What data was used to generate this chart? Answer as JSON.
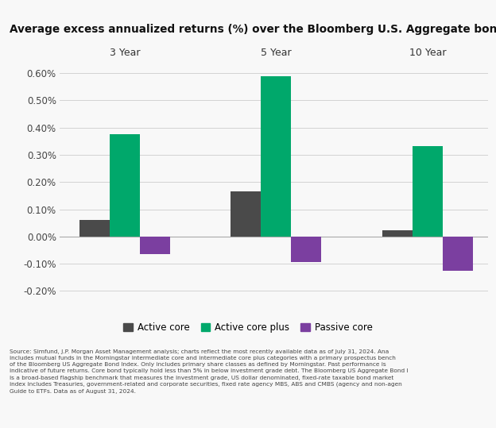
{
  "title": "Average excess annualized returns (%) over the Bloomberg U.S. Aggregate bond index",
  "groups": [
    "3 Year",
    "5 Year",
    "10 Year"
  ],
  "series": {
    "Active core": [
      0.06,
      0.165,
      0.022
    ],
    "Active core plus": [
      0.375,
      0.59,
      0.333
    ],
    "Passive core": [
      -0.065,
      -0.095,
      -0.125
    ]
  },
  "colors": {
    "Active core": "#4a4a4a",
    "Active core plus": "#00a86b",
    "Passive core": "#7b3fa0"
  },
  "ylim": [
    -0.225,
    0.65
  ],
  "yticks": [
    -0.2,
    -0.1,
    0.0,
    0.1,
    0.2,
    0.3,
    0.4,
    0.5,
    0.6
  ],
  "background_color": "#f8f8f8",
  "footnote_lines": [
    "Source: Simfund, J.P. Morgan Asset Management analysis; charts reflect the most recently available data as of July 31, 2024. Ana",
    "includes mutual funds in the Morningstar intermediate core and intermediate core plus categories with a primary prospectus bench",
    "of the Bloomberg US Aggregate Bond Index. Only includes primary share classes as defined by Morningstar. Past performance is",
    "indicative of future returns. Core bond typically hold less than 5% in below investment grade debt. The Bloomberg US Aggregate Bond I",
    "is a broad-based flagship benchmark that measures the investment grade, US dollar denominated, fixed-rate taxable bond market",
    "index includes Treasuries, government-related and corporate securities, fixed rate agency MBS, ABS and CMBS (agency and non-agen",
    "Guide to ETFs. Data as of August 31, 2024."
  ]
}
